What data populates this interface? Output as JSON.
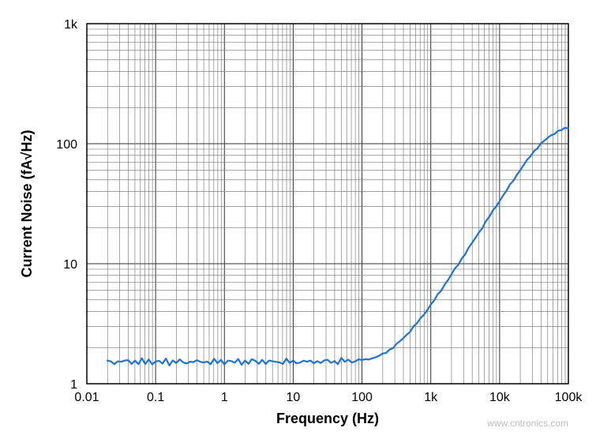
{
  "chart": {
    "type": "line",
    "xlabel": "Frequency (Hz)",
    "ylabel": "Current Noise (fA√Hz)",
    "title_fontsize": 18,
    "tick_fontsize": 16,
    "background_color": "#ffffff",
    "grid_minor_color": "#808080",
    "grid_major_color": "#333333",
    "plot_border_color": "#000000",
    "line_color": "#1f73d1",
    "line_width": 2.2,
    "xscale": "log",
    "yscale": "log",
    "xlim_log10": [
      -2,
      5
    ],
    "ylim_log10": [
      0,
      3
    ],
    "xtick_log10": [
      -2,
      -1,
      0,
      1,
      2,
      3,
      4,
      5
    ],
    "xtick_labels": [
      "0.01",
      "0.1",
      "1",
      "10",
      "100",
      "1k",
      "10k",
      "100k"
    ],
    "ytick_log10": [
      0,
      1,
      2,
      3
    ],
    "ytick_labels": [
      "1",
      "10",
      "100",
      "1k"
    ],
    "log_minor_ticks": [
      2,
      3,
      4,
      5,
      6,
      7,
      8,
      9
    ],
    "marker_jitter_amp": 0.015,
    "data_points_log10": [
      [
        -1.7,
        0.185
      ],
      [
        -1.65,
        0.178
      ],
      [
        -1.6,
        0.183
      ],
      [
        -1.55,
        0.179
      ],
      [
        -1.5,
        0.195
      ],
      [
        -1.45,
        0.172
      ],
      [
        -1.4,
        0.2
      ],
      [
        -1.35,
        0.17
      ],
      [
        -1.3,
        0.196
      ],
      [
        -1.25,
        0.175
      ],
      [
        -1.2,
        0.19
      ],
      [
        -1.15,
        0.172
      ],
      [
        -1.1,
        0.193
      ],
      [
        -1.05,
        0.178
      ],
      [
        -1.0,
        0.188
      ],
      [
        -0.95,
        0.18
      ],
      [
        -0.9,
        0.17
      ],
      [
        -0.85,
        0.195
      ],
      [
        -0.8,
        0.175
      ],
      [
        -0.75,
        0.188
      ],
      [
        -0.7,
        0.178
      ],
      [
        -0.65,
        0.192
      ],
      [
        -0.6,
        0.17
      ],
      [
        -0.55,
        0.185
      ],
      [
        -0.5,
        0.178
      ],
      [
        -0.45,
        0.195
      ],
      [
        -0.4,
        0.175
      ],
      [
        -0.35,
        0.185
      ],
      [
        -0.3,
        0.178
      ],
      [
        -0.25,
        0.19
      ],
      [
        -0.2,
        0.175
      ],
      [
        -0.15,
        0.188
      ],
      [
        -0.1,
        0.178
      ],
      [
        -0.05,
        0.186
      ],
      [
        0.0,
        0.178
      ],
      [
        0.05,
        0.195
      ],
      [
        0.1,
        0.182
      ],
      [
        0.15,
        0.175
      ],
      [
        0.2,
        0.19
      ],
      [
        0.25,
        0.18
      ],
      [
        0.3,
        0.188
      ],
      [
        0.35,
        0.175
      ],
      [
        0.4,
        0.192
      ],
      [
        0.45,
        0.182
      ],
      [
        0.5,
        0.178
      ],
      [
        0.55,
        0.195
      ],
      [
        0.6,
        0.182
      ],
      [
        0.65,
        0.172
      ],
      [
        0.7,
        0.19
      ],
      [
        0.75,
        0.178
      ],
      [
        0.8,
        0.185
      ],
      [
        0.85,
        0.178
      ],
      [
        0.9,
        0.192
      ],
      [
        0.95,
        0.18
      ],
      [
        1.0,
        0.176
      ],
      [
        1.05,
        0.188
      ],
      [
        1.1,
        0.178
      ],
      [
        1.15,
        0.19
      ],
      [
        1.2,
        0.182
      ],
      [
        1.25,
        0.176
      ],
      [
        1.3,
        0.19
      ],
      [
        1.35,
        0.182
      ],
      [
        1.4,
        0.186
      ],
      [
        1.45,
        0.18
      ],
      [
        1.5,
        0.192
      ],
      [
        1.55,
        0.182
      ],
      [
        1.6,
        0.186
      ],
      [
        1.65,
        0.182
      ],
      [
        1.7,
        0.195
      ],
      [
        1.75,
        0.186
      ],
      [
        1.8,
        0.192
      ],
      [
        1.85,
        0.186
      ],
      [
        1.9,
        0.198
      ],
      [
        1.95,
        0.19
      ],
      [
        2.0,
        0.2
      ],
      [
        2.05,
        0.198
      ],
      [
        2.1,
        0.208
      ],
      [
        2.15,
        0.212
      ],
      [
        2.2,
        0.222
      ],
      [
        2.25,
        0.232
      ],
      [
        2.3,
        0.246
      ],
      [
        2.35,
        0.262
      ],
      [
        2.4,
        0.282
      ],
      [
        2.45,
        0.302
      ],
      [
        2.5,
        0.326
      ],
      [
        2.55,
        0.352
      ],
      [
        2.6,
        0.38
      ],
      [
        2.65,
        0.408
      ],
      [
        2.7,
        0.44
      ],
      [
        2.75,
        0.472
      ],
      [
        2.8,
        0.506
      ],
      [
        2.85,
        0.542
      ],
      [
        2.9,
        0.578
      ],
      [
        2.95,
        0.618
      ],
      [
        3.0,
        0.656
      ],
      [
        3.05,
        0.696
      ],
      [
        3.1,
        0.738
      ],
      [
        3.15,
        0.78
      ],
      [
        3.2,
        0.824
      ],
      [
        3.25,
        0.866
      ],
      [
        3.3,
        0.91
      ],
      [
        3.35,
        0.954
      ],
      [
        3.4,
        0.996
      ],
      [
        3.45,
        1.04
      ],
      [
        3.5,
        1.086
      ],
      [
        3.55,
        1.128
      ],
      [
        3.6,
        1.172
      ],
      [
        3.65,
        1.216
      ],
      [
        3.7,
        1.26
      ],
      [
        3.75,
        1.304
      ],
      [
        3.8,
        1.348
      ],
      [
        3.85,
        1.392
      ],
      [
        3.9,
        1.436
      ],
      [
        3.95,
        1.48
      ],
      [
        4.0,
        1.524
      ],
      [
        4.05,
        1.566
      ],
      [
        4.1,
        1.61
      ],
      [
        4.15,
        1.652
      ],
      [
        4.2,
        1.696
      ],
      [
        4.25,
        1.738
      ],
      [
        4.3,
        1.782
      ],
      [
        4.35,
        1.822
      ],
      [
        4.4,
        1.86
      ],
      [
        4.45,
        1.9
      ],
      [
        4.5,
        1.936
      ],
      [
        4.55,
        1.968
      ],
      [
        4.6,
        1.998
      ],
      [
        4.65,
        2.024
      ],
      [
        4.7,
        2.048
      ],
      [
        4.75,
        2.07
      ],
      [
        4.8,
        2.088
      ],
      [
        4.85,
        2.104
      ],
      [
        4.9,
        2.116
      ],
      [
        4.95,
        2.126
      ],
      [
        5.0,
        2.13
      ]
    ]
  },
  "watermark": "www.cntronics.com"
}
